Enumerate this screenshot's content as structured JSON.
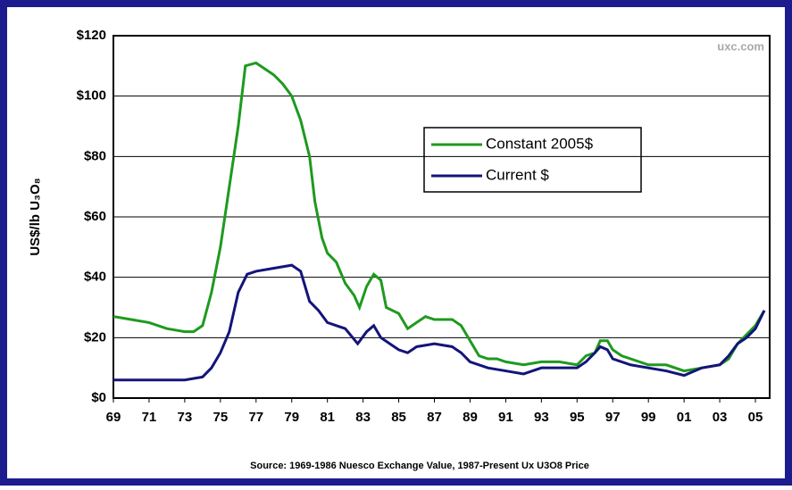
{
  "chart_data": {
    "type": "line",
    "ylabel": "US$/lb U₃O₈",
    "watermark": "uxc.com",
    "source": "Source: 1969-1986 Nuesco Exchange Value, 1987-Present Ux U3O8 Price",
    "xlim": [
      1969,
      2005.8
    ],
    "xticks": [
      {
        "value": 1969,
        "label": "69"
      },
      {
        "value": 1971,
        "label": "71"
      },
      {
        "value": 1973,
        "label": "73"
      },
      {
        "value": 1975,
        "label": "75"
      },
      {
        "value": 1977,
        "label": "77"
      },
      {
        "value": 1979,
        "label": "79"
      },
      {
        "value": 1981,
        "label": "81"
      },
      {
        "value": 1983,
        "label": "83"
      },
      {
        "value": 1985,
        "label": "85"
      },
      {
        "value": 1987,
        "label": "87"
      },
      {
        "value": 1989,
        "label": "89"
      },
      {
        "value": 1991,
        "label": "91"
      },
      {
        "value": 1993,
        "label": "93"
      },
      {
        "value": 1995,
        "label": "95"
      },
      {
        "value": 1997,
        "label": "97"
      },
      {
        "value": 1999,
        "label": "99"
      },
      {
        "value": 2001,
        "label": "01"
      },
      {
        "value": 2003,
        "label": "03"
      },
      {
        "value": 2005,
        "label": "05"
      }
    ],
    "ylim": [
      0,
      120
    ],
    "yticks": [
      {
        "value": 0,
        "label": "$0"
      },
      {
        "value": 20,
        "label": "$20"
      },
      {
        "value": 40,
        "label": "$40"
      },
      {
        "value": 60,
        "label": "$60"
      },
      {
        "value": 80,
        "label": "$80"
      },
      {
        "value": 100,
        "label": "$100"
      },
      {
        "value": 120,
        "label": "$120"
      }
    ],
    "grid": true,
    "legend": "upper right",
    "series": [
      {
        "name": "Constant 2005$",
        "color": "#1e9a1e",
        "x": [
          1969,
          1970,
          1971,
          1972,
          1973,
          1973.5,
          1974,
          1974.5,
          1975,
          1975.5,
          1976,
          1976.4,
          1977,
          1977.5,
          1978,
          1978.5,
          1979,
          1979.5,
          1980,
          1980.3,
          1980.7,
          1981,
          1981.5,
          1982,
          1982.5,
          1982.8,
          1983.2,
          1983.6,
          1984,
          1984.3,
          1985,
          1985.5,
          1986,
          1986.5,
          1987,
          1988,
          1988.5,
          1989,
          1989.5,
          1990,
          1990.5,
          1991,
          1992,
          1993,
          1994,
          1995,
          1995.5,
          1996,
          1996.3,
          1996.7,
          1997,
          1997.5,
          1998,
          1999,
          2000,
          2001,
          2002,
          2003,
          2003.5,
          2004,
          2004.5,
          2005,
          2005.5
        ],
        "values": [
          27,
          26,
          25,
          23,
          22,
          22,
          24,
          35,
          50,
          70,
          90,
          110,
          111,
          109,
          107,
          104,
          100,
          92,
          80,
          65,
          53,
          48,
          45,
          38,
          34,
          30,
          37,
          41,
          39,
          30,
          28,
          23,
          25,
          27,
          26,
          26,
          24,
          19,
          14,
          13,
          13,
          12,
          11,
          12,
          12,
          11,
          14,
          15,
          19,
          19,
          16,
          14,
          13,
          11,
          11,
          9,
          10,
          11,
          13,
          18,
          21,
          24,
          29
        ]
      },
      {
        "name": "Current $",
        "color": "#14147a",
        "x": [
          1969,
          1971,
          1972,
          1973,
          1974,
          1974.5,
          1975,
          1975.5,
          1976,
          1976.5,
          1977,
          1978,
          1979,
          1979.5,
          1980,
          1980.5,
          1981,
          1982,
          1982.7,
          1983.2,
          1983.6,
          1984,
          1984.5,
          1985,
          1985.5,
          1986,
          1987,
          1988,
          1988.5,
          1989,
          1990,
          1991,
          1992,
          1993,
          1994,
          1995,
          1995.5,
          1996,
          1996.3,
          1996.7,
          1997,
          1998,
          1999,
          2000,
          2001,
          2002,
          2003,
          2003.5,
          2004,
          2004.5,
          2005,
          2005.5
        ],
        "values": [
          6,
          6,
          6,
          6,
          7,
          10,
          15,
          22,
          35,
          41,
          42,
          43,
          44,
          42,
          32,
          29,
          25,
          23,
          18,
          22,
          24,
          20,
          18,
          16,
          15,
          17,
          18,
          17,
          15,
          12,
          10,
          9,
          8,
          10,
          10,
          10,
          12,
          15,
          17,
          16,
          13,
          11,
          10,
          9,
          7.5,
          10,
          11,
          14,
          18,
          20,
          23,
          29
        ]
      }
    ]
  }
}
